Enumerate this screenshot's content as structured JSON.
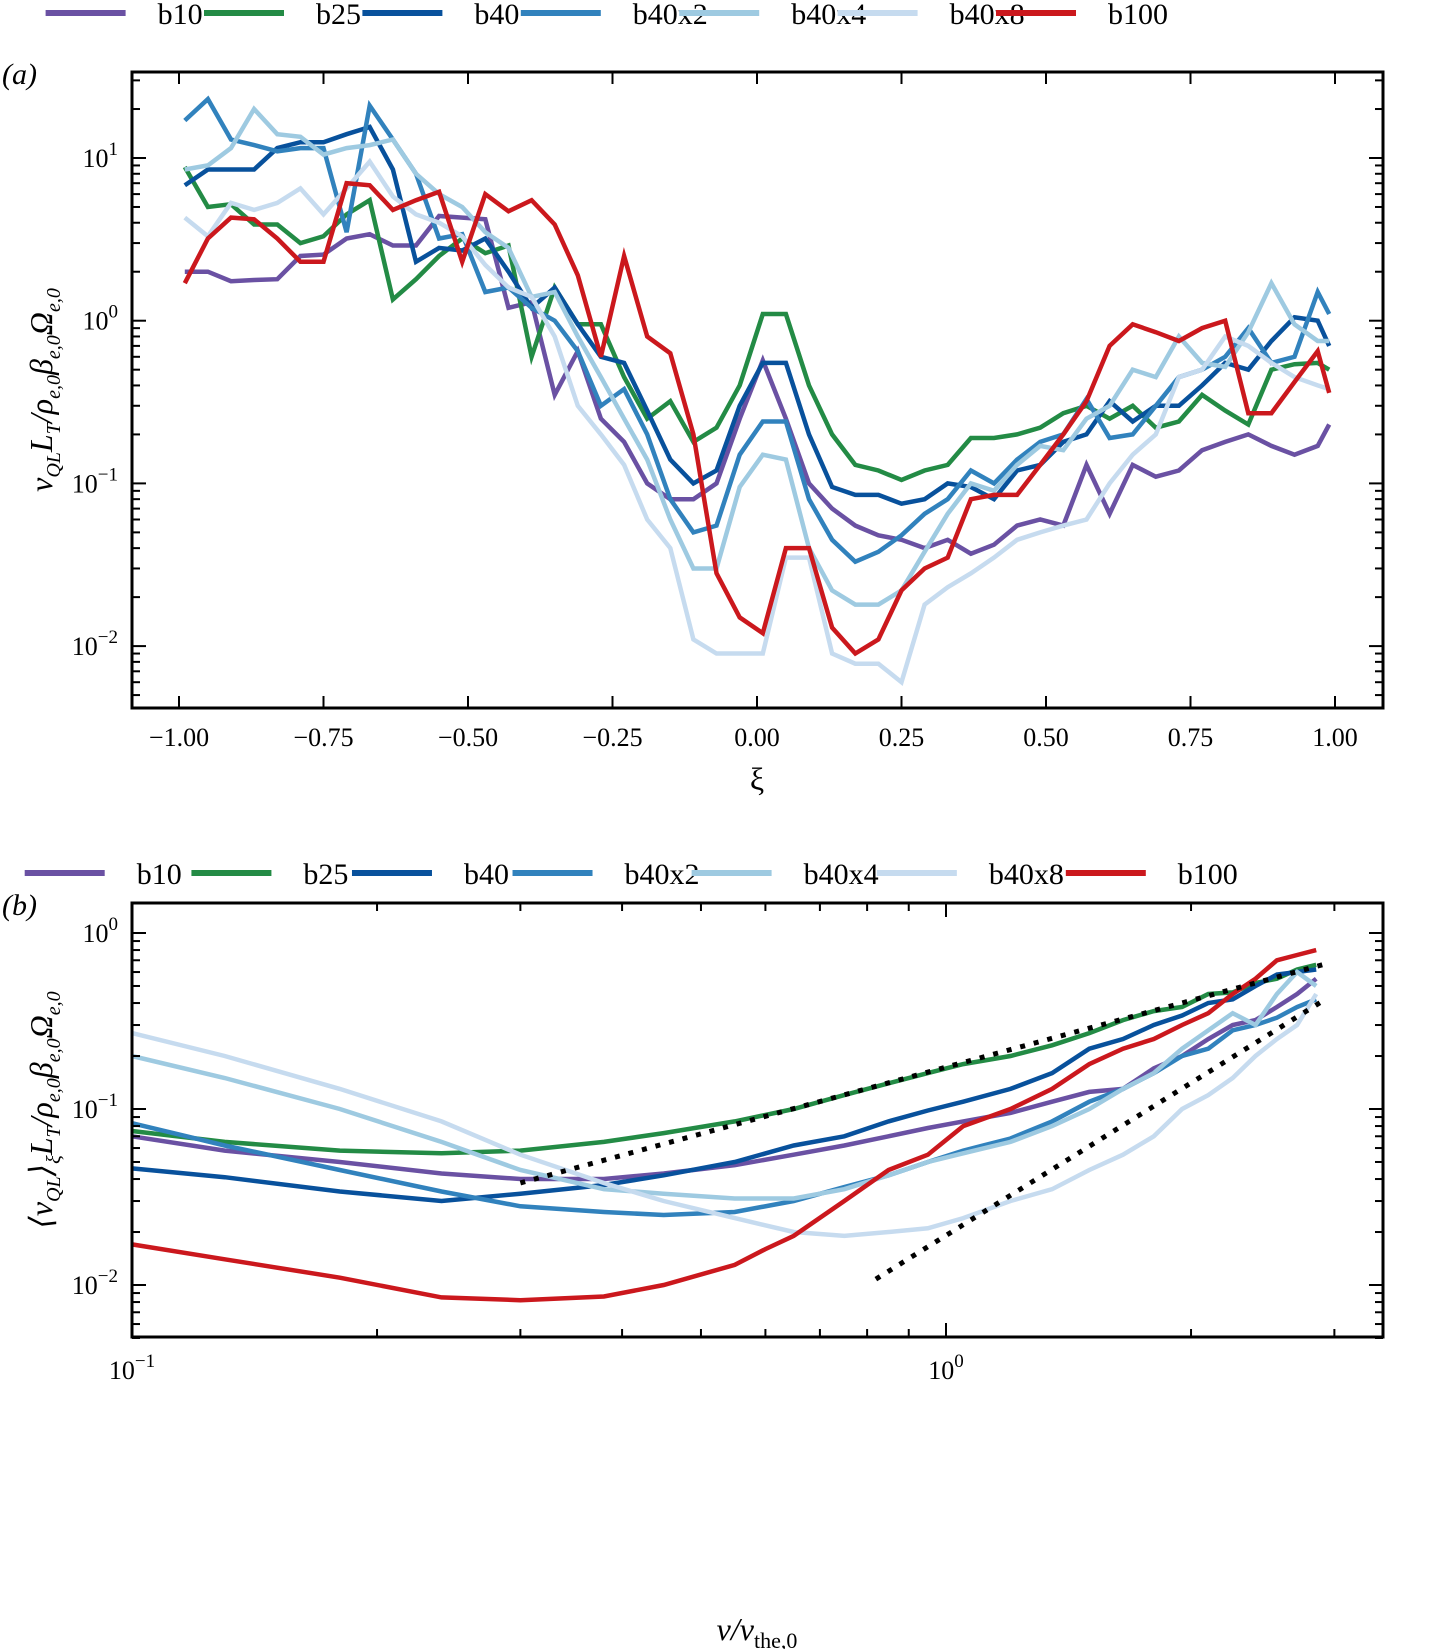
{
  "colors": {
    "b10": "#6a51a3",
    "b25": "#238b45",
    "b40": "#08519c",
    "b40x2": "#3182bd",
    "b40x4": "#9ecae1",
    "b40x8": "#c6dbef",
    "b100": "#cb181d",
    "reference": "#000000"
  },
  "chart_data": [
    {
      "panel_label": "(a)",
      "type": "line",
      "xscale": "linear",
      "yscale": "log",
      "xlabel": "ξ",
      "ylabel": "ν_QL L_T / ρ_e,0 β_e,0 Ω_e,0",
      "ylabel_parts": {
        "main": "ν",
        "sub1": "QL",
        "mid": "L",
        "sub2": "T",
        "rest": "/ρ",
        "sub3": "e,0",
        "beta": "β",
        "sub4": "e,0",
        "omega": "Ω",
        "sub5": "e,0"
      },
      "xlim": [
        -1.08,
        1.09
      ],
      "ylim": [
        0.0042,
        34
      ],
      "xticks": [
        -1.0,
        -0.75,
        -0.5,
        -0.25,
        0.0,
        0.25,
        0.5,
        0.75,
        1.0
      ],
      "xtick_labels": [
        "−1.00",
        "−0.75",
        "−0.50",
        "−0.25",
        "0.00",
        "0.25",
        "0.50",
        "0.75",
        "1.00"
      ],
      "yticks": [
        0.01,
        0.1,
        1,
        10
      ],
      "ytick_labels": [
        {
          "base": "10",
          "exp": "−2"
        },
        {
          "base": "10",
          "exp": "−1"
        },
        {
          "base": "10",
          "exp": "0"
        },
        {
          "base": "10",
          "exp": "1"
        }
      ],
      "legend": {
        "placement": "top, outside, single row",
        "entries": [
          "b10",
          "b25",
          "b40",
          "b40x2",
          "b40x4",
          "b40x8",
          "b100"
        ]
      },
      "grid": false,
      "x": [
        -0.99,
        -0.95,
        -0.91,
        -0.87,
        -0.83,
        -0.79,
        -0.75,
        -0.71,
        -0.67,
        -0.63,
        -0.59,
        -0.55,
        -0.51,
        -0.47,
        -0.43,
        -0.39,
        -0.35,
        -0.31,
        -0.27,
        -0.23,
        -0.19,
        -0.15,
        -0.11,
        -0.07,
        -0.03,
        0.01,
        0.05,
        0.09,
        0.13,
        0.17,
        0.21,
        0.25,
        0.29,
        0.33,
        0.37,
        0.41,
        0.45,
        0.49,
        0.53,
        0.57,
        0.61,
        0.65,
        0.69,
        0.73,
        0.77,
        0.81,
        0.85,
        0.89,
        0.93,
        0.97,
        0.99
      ],
      "series": [
        {
          "name": "b10",
          "values": [
            2.0,
            2.0,
            1.75,
            1.78,
            1.8,
            2.5,
            2.55,
            3.2,
            3.4,
            2.9,
            2.9,
            4.4,
            4.3,
            4.2,
            1.2,
            1.3,
            0.35,
            0.65,
            0.25,
            0.18,
            0.1,
            0.08,
            0.08,
            0.1,
            0.25,
            0.57,
            0.25,
            0.1,
            0.07,
            0.055,
            0.048,
            0.045,
            0.04,
            0.045,
            0.037,
            0.042,
            0.055,
            0.06,
            0.055,
            0.13,
            0.065,
            0.13,
            0.11,
            0.12,
            0.16,
            0.18,
            0.2,
            0.17,
            0.15,
            0.17,
            0.23
          ]
        },
        {
          "name": "b25",
          "values": [
            8.8,
            5.0,
            5.2,
            3.9,
            3.9,
            3.0,
            3.3,
            4.5,
            5.5,
            1.35,
            1.8,
            2.5,
            3.2,
            2.6,
            2.9,
            0.6,
            1.6,
            0.95,
            0.95,
            0.45,
            0.25,
            0.32,
            0.18,
            0.22,
            0.4,
            1.1,
            1.1,
            0.4,
            0.2,
            0.13,
            0.12,
            0.105,
            0.12,
            0.13,
            0.19,
            0.19,
            0.2,
            0.22,
            0.27,
            0.3,
            0.25,
            0.3,
            0.22,
            0.24,
            0.35,
            0.28,
            0.23,
            0.5,
            0.54,
            0.55,
            0.5
          ]
        },
        {
          "name": "b40",
          "values": [
            6.8,
            8.5,
            8.5,
            8.5,
            11.5,
            12.5,
            12.5,
            14.0,
            15.5,
            8.5,
            2.3,
            2.8,
            2.7,
            3.2,
            2.0,
            1.2,
            1.6,
            0.95,
            0.6,
            0.55,
            0.28,
            0.14,
            0.1,
            0.12,
            0.3,
            0.55,
            0.55,
            0.2,
            0.095,
            0.085,
            0.085,
            0.075,
            0.08,
            0.1,
            0.095,
            0.08,
            0.12,
            0.13,
            0.18,
            0.2,
            0.32,
            0.24,
            0.3,
            0.3,
            0.4,
            0.55,
            0.5,
            0.75,
            1.05,
            1.0,
            0.7
          ]
        },
        {
          "name": "b40x2",
          "values": [
            17,
            23,
            13,
            12,
            11,
            11.5,
            11.5,
            3.5,
            21,
            13,
            8,
            3.2,
            3.4,
            1.5,
            1.6,
            1.2,
            1.0,
            0.65,
            0.3,
            0.38,
            0.2,
            0.08,
            0.05,
            0.055,
            0.15,
            0.24,
            0.24,
            0.08,
            0.045,
            0.033,
            0.038,
            0.048,
            0.065,
            0.08,
            0.12,
            0.1,
            0.14,
            0.18,
            0.2,
            0.33,
            0.19,
            0.2,
            0.3,
            0.45,
            0.5,
            0.6,
            0.9,
            0.55,
            0.6,
            1.5,
            1.1
          ]
        },
        {
          "name": "b40x4",
          "values": [
            8.5,
            9.0,
            11.5,
            20,
            14,
            13.5,
            10.5,
            11.5,
            12,
            13,
            8,
            6,
            5,
            3.5,
            2.8,
            1.4,
            1.5,
            0.8,
            0.45,
            0.25,
            0.14,
            0.06,
            0.03,
            0.03,
            0.095,
            0.15,
            0.14,
            0.04,
            0.022,
            0.018,
            0.018,
            0.022,
            0.038,
            0.065,
            0.1,
            0.09,
            0.13,
            0.17,
            0.16,
            0.25,
            0.3,
            0.5,
            0.45,
            0.8,
            0.55,
            0.52,
            0.85,
            1.7,
            0.95,
            0.75,
            0.75
          ]
        },
        {
          "name": "b40x8",
          "values": [
            4.3,
            3.3,
            5.3,
            4.8,
            5.3,
            6.5,
            4.5,
            6.5,
            9.5,
            5.8,
            4.5,
            4.0,
            3.3,
            2.2,
            1.6,
            1.4,
            0.8,
            0.3,
            0.2,
            0.13,
            0.06,
            0.04,
            0.011,
            0.009,
            0.009,
            0.009,
            0.035,
            0.035,
            0.009,
            0.0078,
            0.0078,
            0.006,
            0.018,
            0.023,
            0.028,
            0.035,
            0.045,
            0.05,
            0.055,
            0.06,
            0.1,
            0.15,
            0.2,
            0.45,
            0.5,
            0.8,
            0.7,
            0.55,
            0.45,
            0.4,
            0.38
          ]
        },
        {
          "name": "b100",
          "values": [
            1.7,
            3.2,
            4.3,
            4.2,
            3.2,
            2.3,
            2.3,
            7.0,
            6.8,
            4.8,
            5.5,
            6.2,
            2.3,
            6.0,
            4.7,
            5.5,
            3.9,
            1.9,
            0.6,
            2.5,
            0.8,
            0.63,
            0.2,
            0.028,
            0.015,
            0.012,
            0.04,
            0.04,
            0.013,
            0.009,
            0.011,
            0.022,
            0.03,
            0.035,
            0.08,
            0.085,
            0.085,
            0.13,
            0.2,
            0.32,
            0.7,
            0.95,
            0.85,
            0.75,
            0.9,
            1.0,
            0.27,
            0.27,
            0.42,
            0.65,
            0.36
          ]
        }
      ]
    },
    {
      "panel_label": "(b)",
      "type": "line",
      "xscale": "log",
      "yscale": "log",
      "xlabel": "v/v_the,0",
      "xlabel_parts": {
        "main": "v/v",
        "sub": "the,0"
      },
      "ylabel": "⟨ν_QL⟩_ξ L_T / ρ_e,0 β_e,0 Ω_e,0",
      "xlim": [
        0.1,
        3.44
      ],
      "ylim": [
        0.005,
        1.48
      ],
      "xticks": [
        0.1,
        1.0
      ],
      "xtick_labels": [
        {
          "base": "10",
          "exp": "−1"
        },
        {
          "base": "10",
          "exp": "0"
        }
      ],
      "yticks": [
        0.01,
        0.1,
        1
      ],
      "ytick_labels": [
        {
          "base": "10",
          "exp": "−2"
        },
        {
          "base": "10",
          "exp": "−1"
        },
        {
          "base": "10",
          "exp": "0"
        }
      ],
      "legend": {
        "placement": "top, outside, single row",
        "entries": [
          "b10",
          "b25",
          "b40",
          "b40x2",
          "b40x4",
          "b40x8",
          "b100"
        ]
      },
      "grid": false,
      "reference_lines": [
        {
          "name": "slope-1 fit",
          "style": "dotted",
          "x": [
            0.3,
            2.9
          ],
          "y": [
            0.038,
            0.66
          ]
        },
        {
          "name": "slope-2 fit",
          "style": "dotted",
          "x": [
            0.82,
            2.9
          ],
          "y": [
            0.0108,
            0.41
          ]
        }
      ],
      "series": [
        {
          "name": "b10",
          "x": [
            0.1,
            0.13,
            0.18,
            0.24,
            0.3,
            0.38,
            0.45,
            0.55,
            0.65,
            0.75,
            0.85,
            0.95,
            1.05,
            1.2,
            1.35,
            1.5,
            1.65,
            1.8,
            1.95,
            2.1,
            2.25,
            2.4,
            2.55,
            2.7,
            2.85
          ],
          "values": [
            0.07,
            0.058,
            0.05,
            0.043,
            0.04,
            0.04,
            0.043,
            0.048,
            0.055,
            0.062,
            0.07,
            0.078,
            0.085,
            0.095,
            0.11,
            0.125,
            0.13,
            0.17,
            0.2,
            0.25,
            0.3,
            0.32,
            0.38,
            0.45,
            0.55
          ]
        },
        {
          "name": "b25",
          "x": [
            0.1,
            0.13,
            0.18,
            0.24,
            0.3,
            0.38,
            0.45,
            0.55,
            0.65,
            0.75,
            0.85,
            0.95,
            1.05,
            1.2,
            1.35,
            1.5,
            1.65,
            1.8,
            1.95,
            2.1,
            2.25,
            2.4,
            2.55,
            2.7,
            2.85
          ],
          "values": [
            0.075,
            0.065,
            0.058,
            0.056,
            0.058,
            0.065,
            0.073,
            0.085,
            0.1,
            0.12,
            0.14,
            0.16,
            0.18,
            0.2,
            0.23,
            0.27,
            0.32,
            0.36,
            0.38,
            0.45,
            0.46,
            0.52,
            0.55,
            0.62,
            0.66
          ]
        },
        {
          "name": "b40",
          "x": [
            0.1,
            0.13,
            0.18,
            0.24,
            0.3,
            0.38,
            0.45,
            0.55,
            0.65,
            0.75,
            0.85,
            0.95,
            1.05,
            1.2,
            1.35,
            1.5,
            1.65,
            1.8,
            1.95,
            2.1,
            2.25,
            2.4,
            2.55,
            2.7,
            2.85
          ],
          "values": [
            0.046,
            0.041,
            0.034,
            0.03,
            0.033,
            0.037,
            0.042,
            0.05,
            0.062,
            0.07,
            0.085,
            0.098,
            0.11,
            0.13,
            0.16,
            0.22,
            0.25,
            0.3,
            0.34,
            0.4,
            0.42,
            0.5,
            0.58,
            0.6,
            0.62
          ]
        },
        {
          "name": "b40x2",
          "x": [
            0.1,
            0.13,
            0.18,
            0.24,
            0.3,
            0.38,
            0.45,
            0.55,
            0.65,
            0.75,
            0.85,
            0.95,
            1.05,
            1.2,
            1.35,
            1.5,
            1.65,
            1.8,
            1.95,
            2.1,
            2.25,
            2.4,
            2.55,
            2.7,
            2.85
          ],
          "values": [
            0.083,
            0.062,
            0.045,
            0.034,
            0.028,
            0.026,
            0.025,
            0.026,
            0.03,
            0.036,
            0.042,
            0.05,
            0.058,
            0.068,
            0.085,
            0.11,
            0.13,
            0.16,
            0.2,
            0.22,
            0.28,
            0.3,
            0.33,
            0.38,
            0.42
          ]
        },
        {
          "name": "b40x4",
          "x": [
            0.1,
            0.13,
            0.18,
            0.24,
            0.3,
            0.38,
            0.45,
            0.55,
            0.65,
            0.75,
            0.85,
            0.95,
            1.05,
            1.2,
            1.35,
            1.5,
            1.65,
            1.8,
            1.95,
            2.1,
            2.25,
            2.4,
            2.55,
            2.7,
            2.85
          ],
          "values": [
            0.2,
            0.15,
            0.1,
            0.065,
            0.045,
            0.035,
            0.033,
            0.031,
            0.031,
            0.035,
            0.042,
            0.05,
            0.056,
            0.065,
            0.08,
            0.1,
            0.13,
            0.16,
            0.22,
            0.28,
            0.35,
            0.3,
            0.45,
            0.6,
            0.5
          ]
        },
        {
          "name": "b40x8",
          "x": [
            0.1,
            0.13,
            0.18,
            0.24,
            0.3,
            0.38,
            0.45,
            0.55,
            0.65,
            0.75,
            0.85,
            0.95,
            1.05,
            1.2,
            1.35,
            1.5,
            1.65,
            1.8,
            1.95,
            2.1,
            2.25,
            2.4,
            2.55,
            2.7,
            2.85
          ],
          "values": [
            0.27,
            0.2,
            0.13,
            0.085,
            0.055,
            0.038,
            0.03,
            0.024,
            0.02,
            0.019,
            0.02,
            0.021,
            0.024,
            0.03,
            0.035,
            0.045,
            0.055,
            0.07,
            0.1,
            0.12,
            0.15,
            0.2,
            0.25,
            0.3,
            0.45
          ]
        },
        {
          "name": "b100",
          "x": [
            0.1,
            0.13,
            0.18,
            0.24,
            0.3,
            0.38,
            0.45,
            0.55,
            0.6,
            0.65,
            0.75,
            0.85,
            0.95,
            1.05,
            1.2,
            1.35,
            1.5,
            1.65,
            1.8,
            1.95,
            2.1,
            2.25,
            2.4,
            2.55,
            2.7,
            2.85
          ],
          "values": [
            0.017,
            0.014,
            0.011,
            0.0085,
            0.0082,
            0.0086,
            0.01,
            0.013,
            0.016,
            0.019,
            0.03,
            0.045,
            0.055,
            0.08,
            0.1,
            0.13,
            0.18,
            0.22,
            0.25,
            0.3,
            0.35,
            0.45,
            0.55,
            0.7,
            0.75,
            0.8
          ]
        }
      ]
    }
  ]
}
